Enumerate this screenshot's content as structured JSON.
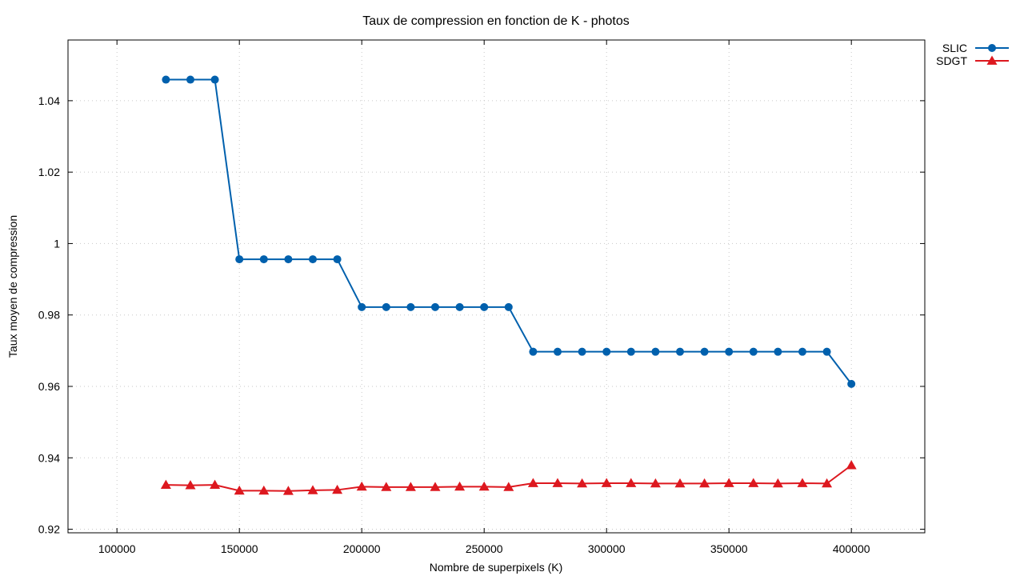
{
  "chart_data": {
    "type": "line",
    "title": "Taux de compression en fonction de K - photos",
    "xlabel": "Nombre de superpixels (K)",
    "ylabel": "Taux moyen de compression",
    "xlim": [
      80000,
      430000
    ],
    "ylim": [
      0.919,
      1.057
    ],
    "xticks": [
      100000,
      150000,
      200000,
      250000,
      300000,
      350000,
      400000
    ],
    "xtick_labels": [
      "100000",
      "150000",
      "200000",
      "250000",
      "300000",
      "350000",
      "400000"
    ],
    "yticks": [
      0.92,
      0.94,
      0.96,
      0.98,
      1.0,
      1.02,
      1.04
    ],
    "ytick_labels": [
      "0.92",
      "0.94",
      "0.96",
      "0.98",
      "1",
      "1.02",
      "1.04"
    ],
    "grid": true,
    "legend_position": "top-right, outside plot",
    "x": [
      120000,
      130000,
      140000,
      150000,
      160000,
      170000,
      180000,
      190000,
      200000,
      210000,
      220000,
      230000,
      240000,
      250000,
      260000,
      270000,
      280000,
      290000,
      300000,
      310000,
      320000,
      330000,
      340000,
      350000,
      360000,
      370000,
      380000,
      390000,
      400000
    ],
    "series": [
      {
        "name": "SLIC",
        "color": "#0060ad",
        "marker": "circle",
        "values": [
          1.0459,
          1.0459,
          1.0459,
          0.9956,
          0.9956,
          0.9956,
          0.9956,
          0.9956,
          0.9822,
          0.9822,
          0.9822,
          0.9822,
          0.9822,
          0.9822,
          0.9822,
          0.9697,
          0.9697,
          0.9697,
          0.9697,
          0.9697,
          0.9697,
          0.9697,
          0.9697,
          0.9697,
          0.9697,
          0.9697,
          0.9697,
          0.9697,
          0.9607
        ]
      },
      {
        "name": "SDGT",
        "color": "#dd181f",
        "marker": "triangle",
        "values": [
          0.9324,
          0.9323,
          0.9324,
          0.9308,
          0.9308,
          0.9307,
          0.9309,
          0.931,
          0.9319,
          0.9318,
          0.9318,
          0.9318,
          0.9319,
          0.9319,
          0.9318,
          0.9329,
          0.9329,
          0.9328,
          0.9329,
          0.9329,
          0.9328,
          0.9328,
          0.9328,
          0.9329,
          0.9329,
          0.9328,
          0.9329,
          0.9328,
          0.9379
        ]
      }
    ]
  }
}
